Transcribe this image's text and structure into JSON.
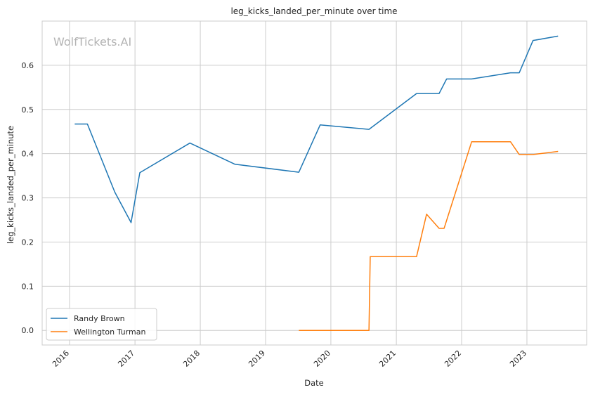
{
  "watermark": "WolfTickets.AI",
  "chart_data": {
    "type": "line",
    "title": "leg_kicks_landed_per_minute over time",
    "xlabel": "Date",
    "ylabel": "leg_kicks_landed_per_minute",
    "x_ticks": [
      "2016-01-01",
      "2017-01-01",
      "2018-01-01",
      "2019-01-01",
      "2020-01-01",
      "2021-01-01",
      "2022-01-01",
      "2023-01-01"
    ],
    "x_tick_labels": [
      "2016",
      "2017",
      "2018",
      "2019",
      "2020",
      "2021",
      "2022",
      "2023"
    ],
    "y_ticks": [
      0.0,
      0.1,
      0.2,
      0.3,
      0.4,
      0.5,
      0.6
    ],
    "y_tick_labels": [
      "0.0",
      "0.1",
      "0.2",
      "0.3",
      "0.4",
      "0.5",
      "0.6"
    ],
    "xlim": [
      "2015-08-01",
      "2023-12-01"
    ],
    "ylim": [
      -0.033,
      0.7
    ],
    "grid": true,
    "legend_position": "lower-left",
    "series": [
      {
        "name": "Randy Brown",
        "color": "#1f77b4",
        "points": [
          [
            "2016-01-30",
            0.467
          ],
          [
            "2016-04-10",
            0.467
          ],
          [
            "2016-09-10",
            0.313
          ],
          [
            "2016-12-10",
            0.244
          ],
          [
            "2017-01-28",
            0.357
          ],
          [
            "2017-11-04",
            0.424
          ],
          [
            "2018-07-14",
            0.376
          ],
          [
            "2019-07-06",
            0.358
          ],
          [
            "2019-11-02",
            0.465
          ],
          [
            "2020-08-01",
            0.455
          ],
          [
            "2021-04-24",
            0.536
          ],
          [
            "2021-08-28",
            0.536
          ],
          [
            "2021-10-09",
            0.569
          ],
          [
            "2022-02-26",
            0.569
          ],
          [
            "2022-10-01",
            0.583
          ],
          [
            "2022-11-19",
            0.583
          ],
          [
            "2023-02-04",
            0.656
          ],
          [
            "2023-06-24",
            0.666
          ]
        ]
      },
      {
        "name": "Wellington Turman",
        "color": "#ff7f0e",
        "points": [
          [
            "2019-07-06",
            0.0
          ],
          [
            "2020-08-01",
            0.0
          ],
          [
            "2020-08-08",
            0.167
          ],
          [
            "2021-04-24",
            0.167
          ],
          [
            "2021-06-19",
            0.263
          ],
          [
            "2021-08-28",
            0.231
          ],
          [
            "2021-09-25",
            0.231
          ],
          [
            "2022-02-26",
            0.427
          ],
          [
            "2022-10-01",
            0.427
          ],
          [
            "2022-11-19",
            0.398
          ],
          [
            "2023-02-04",
            0.398
          ],
          [
            "2023-06-24",
            0.405
          ]
        ]
      }
    ]
  }
}
